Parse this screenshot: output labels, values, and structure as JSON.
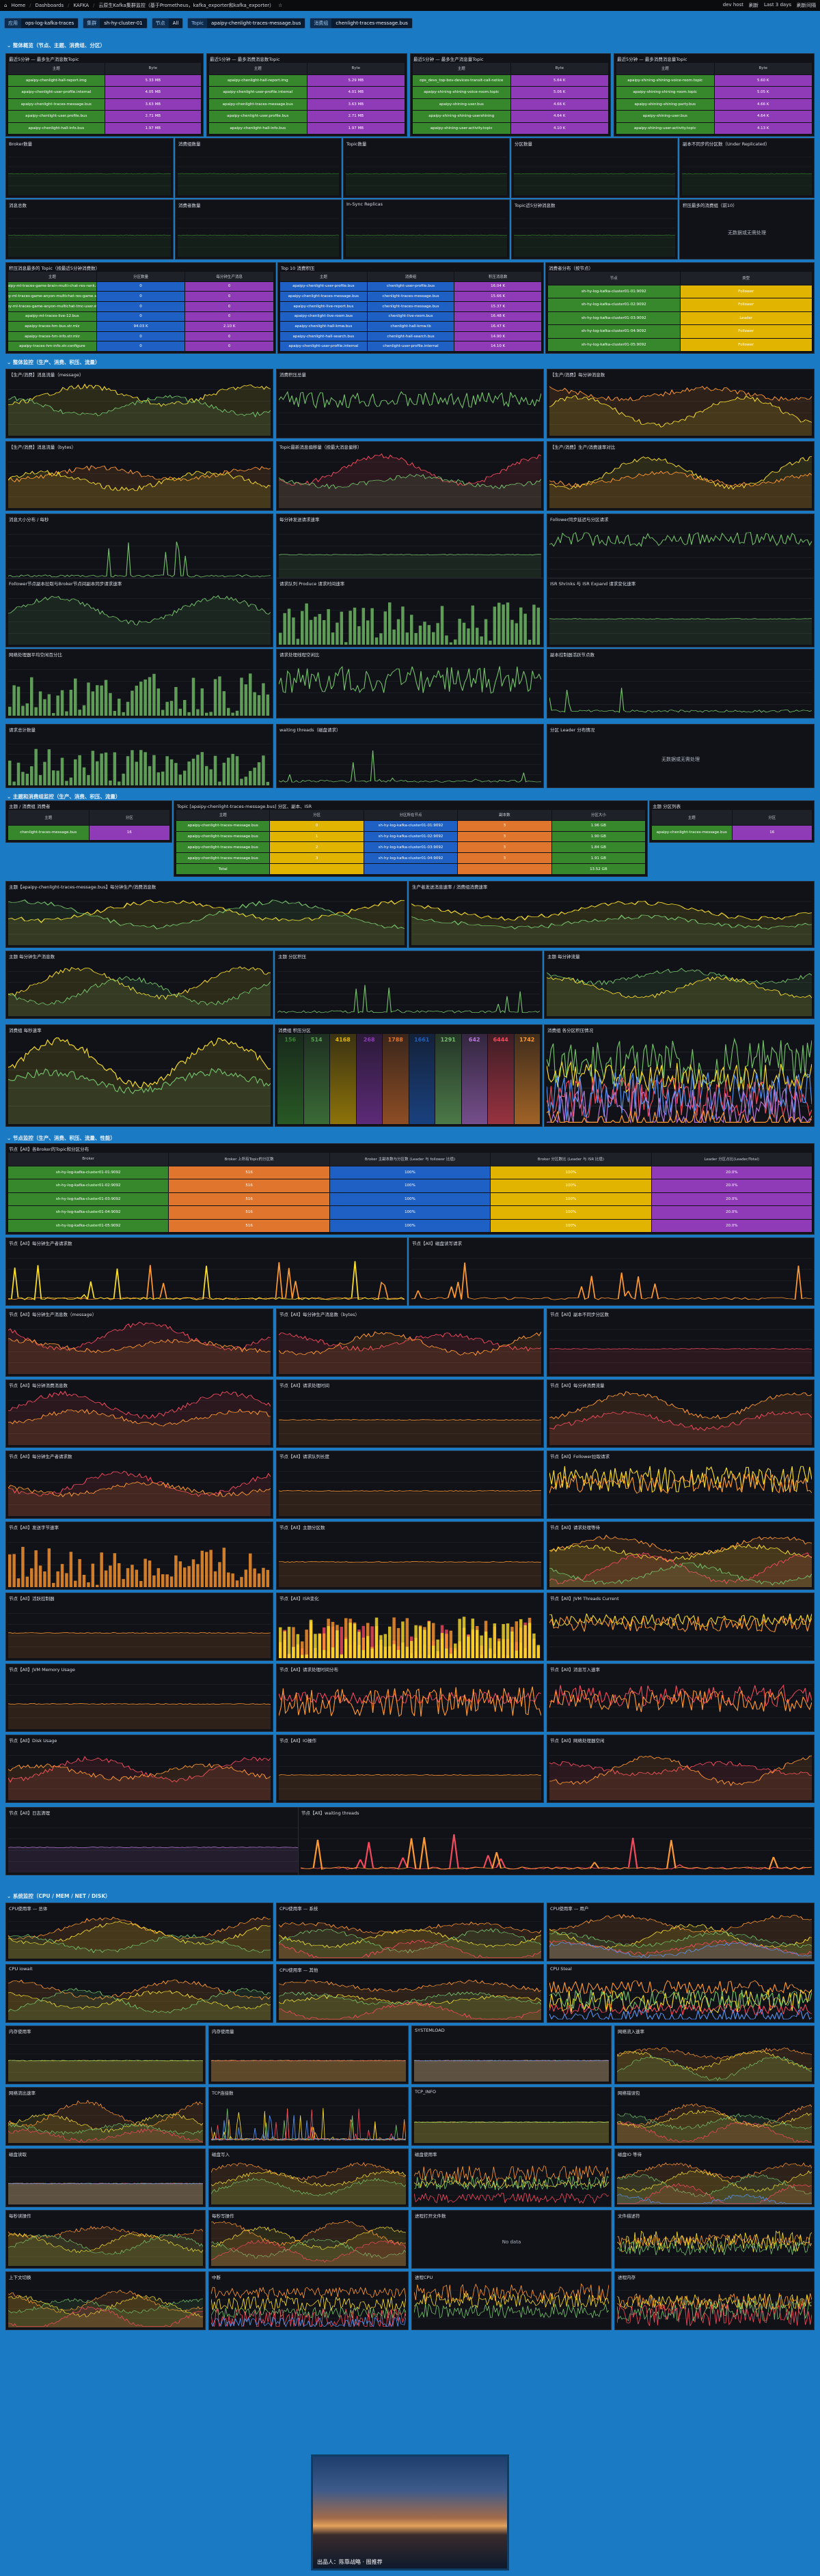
{
  "topbar": {
    "items": [
      "Home",
      "Dashboards",
      "KAFKA",
      "云原生Kafka集群监控（基于Prometheus，kafka_exporter和kafka_exporter）"
    ],
    "right": [
      "dev host",
      "刷新",
      "Last 3 days",
      "刷新间隔"
    ]
  },
  "vars": [
    {
      "k": "应用",
      "v": "ops-log-kafka-traces"
    },
    {
      "k": "集群",
      "v": "sh-hy-cluster-01"
    },
    {
      "k": "节点",
      "v": "All"
    },
    {
      "k": "Topic",
      "v": "apaipy-chenlight-traces-message.bus"
    },
    {
      "k": "消费组",
      "v": "chenlight-traces-message.bus"
    }
  ],
  "sections": [
    {
      "label": "整体概览（节点、主题、消费组、分区）"
    },
    {
      "label": "整体监控（生产、消费、积压、流量）"
    },
    {
      "label": "主题和消费组监控（生产、消费、积压、流量）"
    },
    {
      "label": "节点监控（生产、消费、积压、流量、性能）"
    },
    {
      "label": "系统监控（CPU / MEM / NET / DISK）"
    }
  ],
  "panels": {
    "p1": "最近5分钟 — 最多生产消息数Topic",
    "p2": "最近5分钟 — 最多消费消息数Topic",
    "p3": "最近5分钟 — 最多生产消息量Topic",
    "p4": "最近5分钟 — 最多消费消息量Topic",
    "p5": "Broker数量",
    "p6": "消费组数量",
    "p7": "Topic数量",
    "p8": "分区数量",
    "p9": "副本不同步的分区数（Under Replicated）",
    "p10": "消息总数",
    "p11": "消费者数量",
    "p12": "In-Sync Replicas",
    "p13": "Topic近5分钟消息数",
    "p14": "积压最多的消费组（前10）",
    "p15": "积压消息最多的 Topic（按最近5分钟消费数）",
    "p16": "Top 10 消费积压",
    "p17": "消费者分布（按节点）",
    "q1": "【生产/消费】消息流量（message）",
    "q2": "消费积压总量",
    "q3": "【生产/消费】每分钟消息数",
    "q4": "【生产/消费】消息流量（bytes）",
    "q5": "Topic最新消息偏移量（按最大消息偏移）",
    "q6": "【生产/消费】生产/消费速率对比",
    "q7": "消息大小分布 / 每秒",
    "q8": "每分钟发送请求速率",
    "q9": "Follower同步延迟与分区请求",
    "q10": "Follower节点副本拉取与Broker节点间副本同步请求速率",
    "q11": "请求队列 Produce 请求时间速率",
    "q12": "ISR Shrinks 与 ISR Expand 请求变化速率",
    "q13": "网络处理器平均空闲百分比",
    "q14": "请求处理线程空闲比",
    "q15": "副本控制器活跃节点数",
    "q16": "请求总计数量",
    "q17": "waiting threads（磁盘请求）",
    "q18": "分区 Leader 分布情况",
    "t1": "主题 / 消费组 消费者",
    "t2": "Topic [apaipy-chenlight-traces-message.bus] 分区、副本、ISR",
    "t3": "主题 分区列表",
    "t4": "主题【apaipy-chenlight-traces-message.bus】每分钟生产/消费消息数",
    "t5": "生产者发送消息速率 / 消费组消费速率",
    "t6": "主题 每分钟生产消息数",
    "t7": "主题 分区积压",
    "t8": "主题 每分钟流量",
    "t9": "消费组 每秒速率",
    "t10": "消费组 积压分区",
    "t11": "消费组 各分区积压情况",
    "n1": "节点【All】各Broker的Topic和分区分布",
    "n2": "节点【All】每分钟生产者请求数",
    "n3": "节点【All】磁盘读写请求",
    "n4": "节点【All】每分钟生产消息数（message）",
    "n5": "节点【All】每分钟生产消息数（bytes）",
    "n6": "节点【All】副本不同步分区数",
    "n7": "节点【All】每分钟消费消息数",
    "n8": "节点【All】请求处理时间",
    "n9": "节点【All】每分钟消费流量",
    "n10": "节点【All】每分钟生产者请求数",
    "n11": "节点【All】请求队列长度",
    "n12": "节点【All】Follower拉取请求",
    "n13": "节点【All】发送字节速率",
    "n14": "节点【All】主题分区数",
    "n15": "节点【All】请求处理等待",
    "n16": "节点【All】活跃控制器",
    "n17": "节点【All】ISR变化",
    "n18": "节点【All】JVM Threads Current",
    "n19": "节点【All】JVM Memory Usage",
    "n20": "节点【All】请求处理时间分布",
    "n21": "节点【All】消息写入速率",
    "n22": "节点【All】Disk Usage",
    "n23": "节点【All】IO操作",
    "n24": "节点【All】网络处理器空闲",
    "n25": "节点【All】日志清理",
    "n26": "节点【All】waiting threads",
    "s1": "CPU使用率 — 总体",
    "s2": "CPU使用率 — 系统",
    "s3": "CPU使用率 — 用户",
    "s4": "CPU iowait",
    "s5": "CPU使用率 — 其他",
    "s6": "CPU Steal",
    "s7": "内存使用率",
    "s8": "内存使用量",
    "s9": "SYSTEMLOAD",
    "s10": "网络流入速率",
    "s11": "网络流出速率",
    "s12": "TCP连接数",
    "s13": "TCP_INFO",
    "s14": "网络错误包",
    "s15": "磁盘读取",
    "s16": "磁盘写入",
    "s17": "磁盘使用率",
    "s18": "磁盘IO 等待",
    "s19": "每秒读操作",
    "s20": "每秒写操作",
    "s21": "进程打开文件数",
    "s22": "文件描述符",
    "s23": "上下文切换",
    "s24": "中断",
    "s25": "进程CPU",
    "s26": "进程内存",
    "s27": "线程数",
    "s28": "GC耗时"
  },
  "tables": {
    "p1": {
      "cols": [
        "主题",
        "Byte"
      ],
      "rows": [
        [
          "apaipy-chenlight-hall-report.img",
          "5.33 MB"
        ],
        [
          "apaipy-chenlight-user-profile.internal",
          "4.05 MB"
        ],
        [
          "apaipy-chenlight-traces-message.bus",
          "3.63 MB"
        ],
        [
          "apaipy-chenlight-user.profile.bus",
          "2.71 MB"
        ],
        [
          "apaipy-chenlight-hall-info.bus",
          "1.97 MB"
        ]
      ]
    },
    "p2": {
      "cols": [
        "主题",
        "Byte"
      ],
      "rows": [
        [
          "apaipy-chenlight-hall-report.img",
          "5.29 MB"
        ],
        [
          "apaipy-chenlight-user-profile.internal",
          "4.01 MB"
        ],
        [
          "apaipy-chenlight-traces-message.bus",
          "3.63 MB"
        ],
        [
          "apaipy-chenlight-user.profile.bus",
          "2.71 MB"
        ],
        [
          "apaipy-chenlight-hall-info.bus",
          "1.97 MB"
        ]
      ]
    },
    "p3": {
      "cols": [
        "主题",
        "Byte"
      ],
      "rows": [
        [
          "ops_devs_top-bov-devices-transit-call-notice",
          "5.64 K"
        ],
        [
          "apaipy-shining-shining-voice-room.topic",
          "5.06 K"
        ],
        [
          "apaipy-shining-user.bus",
          "4.66 K"
        ],
        [
          "apaipy-shining-shining-usershining",
          "4.64 K"
        ],
        [
          "apaipy-shining-user-activity.topic",
          "4.10 K"
        ]
      ]
    },
    "p4": {
      "cols": [
        "主题",
        "Byte"
      ],
      "rows": [
        [
          "apaipy-shining-shining-voice-room.topic",
          "5.60 K"
        ],
        [
          "apaipy-shining-shining-room.topic",
          "5.05 K"
        ],
        [
          "apaipy-shining-shining-party.bus",
          "4.66 K"
        ],
        [
          "apaipy-shining-user.bus",
          "4.64 K"
        ],
        [
          "apaipy-shining-user-activity.topic",
          "4.13 K"
        ]
      ]
    },
    "p15": {
      "cols": [
        "主题",
        "分区数量",
        "每分钟生产消息"
      ],
      "rows": [
        [
          "apaipy-ml-traces-game-brain-multi-chat-res-rank.res",
          "0",
          "0"
        ],
        [
          "apaipy-ml-traces-game-anyon-multichat-res-game.str.res",
          "0",
          "0"
        ],
        [
          "apaipy-ml-traces-game-anyon-multichat-tmc-user.str.res",
          "0",
          "0"
        ],
        [
          "apaipy-ml-traces-live-12.bus",
          "0",
          "0"
        ],
        [
          "apaipy-traces-hm-bus.str.mlz",
          "94.03 K",
          "2.10 K"
        ],
        [
          "apaipy-traces-hm-info.str.mlz",
          "0",
          "0"
        ],
        [
          "apaipy-traces-hm-info.str.configure",
          "0",
          "0"
        ]
      ]
    },
    "p16": {
      "cols": [
        "主题",
        "消费组",
        "积压消息数"
      ],
      "rows": [
        [
          "apaipy-chenlight-user-profile.bus",
          "chenlight-user-profile.bus",
          "16.04 K"
        ],
        [
          "apaipy-chenlight-traces-message.bus",
          "chenlight-traces-message.bus",
          "15.66 K"
        ],
        [
          "apaipy-chenlight-live-report.bus",
          "chenlight-traces-message.bus",
          "15.37 K"
        ],
        [
          "apaipy-chenlight-live-room.bus",
          "chenlight-live-room.bus",
          "16.48 K"
        ],
        [
          "apaipy-chenlight-hall-kmw.bus",
          "chenlight-hall-kmw.tb",
          "16.47 K"
        ],
        [
          "apaipy-chenlight-hall-search.bus",
          "chenlight-hall-search.bus",
          "14.90 K"
        ],
        [
          "apaipy-chenlight-user-profile.internal",
          "chenlight-user-profile.internal",
          "14.10 K"
        ]
      ]
    },
    "p17": {
      "cols": [
        "节点",
        "类型"
      ],
      "rows": [
        [
          "sh-hy-log-kafka-cluster01-01:9092",
          "Follower"
        ],
        [
          "sh-hy-log-kafka-cluster01-02:9092",
          "Follower"
        ],
        [
          "sh-hy-log-kafka-cluster01-03:9092",
          "Leader"
        ],
        [
          "sh-hy-log-kafka-cluster01-04:9092",
          "Follower"
        ],
        [
          "sh-hy-log-kafka-cluster01-05:9092",
          "Follower"
        ]
      ]
    },
    "t1": {
      "cols": [
        "主题",
        "分区"
      ],
      "rows": [
        [
          "chenlight-traces-message.bus",
          "16"
        ]
      ]
    },
    "t2": {
      "cols": [
        "主题",
        "分区",
        "分区所在节点",
        "副本数",
        "分区大小"
      ],
      "rows": [
        [
          "apaipy-chenlight-traces-message.bus",
          "0",
          "sh-hy-log-kafka-cluster01-01:9092",
          "3",
          "1.96 GB"
        ],
        [
          "apaipy-chenlight-traces-message.bus",
          "1",
          "sh-hy-log-kafka-cluster01-02:9092",
          "3",
          "1.90 GB"
        ],
        [
          "apaipy-chenlight-traces-message.bus",
          "2",
          "sh-hy-log-kafka-cluster01-03:9092",
          "3",
          "1.84 GB"
        ],
        [
          "apaipy-chenlight-traces-message.bus",
          "3",
          "sh-hy-log-kafka-cluster01-04:9092",
          "3",
          "1.91 GB"
        ],
        [
          "Total",
          "",
          "",
          "",
          "13.52 GB"
        ]
      ]
    },
    "t3": {
      "cols": [
        "主题",
        "分区"
      ],
      "rows": [
        [
          "apaipy-chenlight-traces-message.bus",
          "16"
        ]
      ]
    },
    "n1": {
      "cols": [
        "Broker",
        "Broker 上所有Topic的分区数",
        "Broker 主副本数与分区数 (Leader 与 follower 比值)",
        "Broker 分区数比 (Leader 与 ISR 比值)",
        "Leader 分区占比(Leader/Total)"
      ],
      "rows": [
        [
          "sh-hy-log-kafka-cluster01-01:9092",
          "516",
          "100%",
          "100%",
          "20.0%"
        ],
        [
          "sh-hy-log-kafka-cluster01-02:9092",
          "516",
          "100%",
          "100%",
          "20.0%"
        ],
        [
          "sh-hy-log-kafka-cluster01-03:9092",
          "516",
          "100%",
          "100%",
          "20.0%"
        ],
        [
          "sh-hy-log-kafka-cluster01-04:9092",
          "516",
          "100%",
          "100%",
          "20.0%"
        ],
        [
          "sh-hy-log-kafka-cluster01-05:9092",
          "516",
          "100%",
          "100%",
          "20.0%"
        ]
      ]
    }
  },
  "stats": {
    "t9": [
      "156",
      "514",
      "4168",
      "268",
      "1788",
      "1661",
      "1291",
      "642",
      "6444",
      "1742"
    ]
  },
  "nodata": {
    "p14": "无数据或无需处理",
    "q18": "无数据或无需处理",
    "s21": "No data"
  },
  "photo": {
    "caption": "出品人：陈靠战略 · 图推荐"
  },
  "colors": {
    "green": "#37872d",
    "blue": "#1f60c4",
    "orange": "#e0752d",
    "yellow": "#e0b400",
    "purple": "#8f3bb8",
    "line_green": "#73bf69",
    "line_yellow": "#fade2a",
    "line_red": "#f2495c",
    "line_orange": "#ff9830",
    "line_blue": "#5794f2",
    "line_purple": "#b877d9"
  }
}
